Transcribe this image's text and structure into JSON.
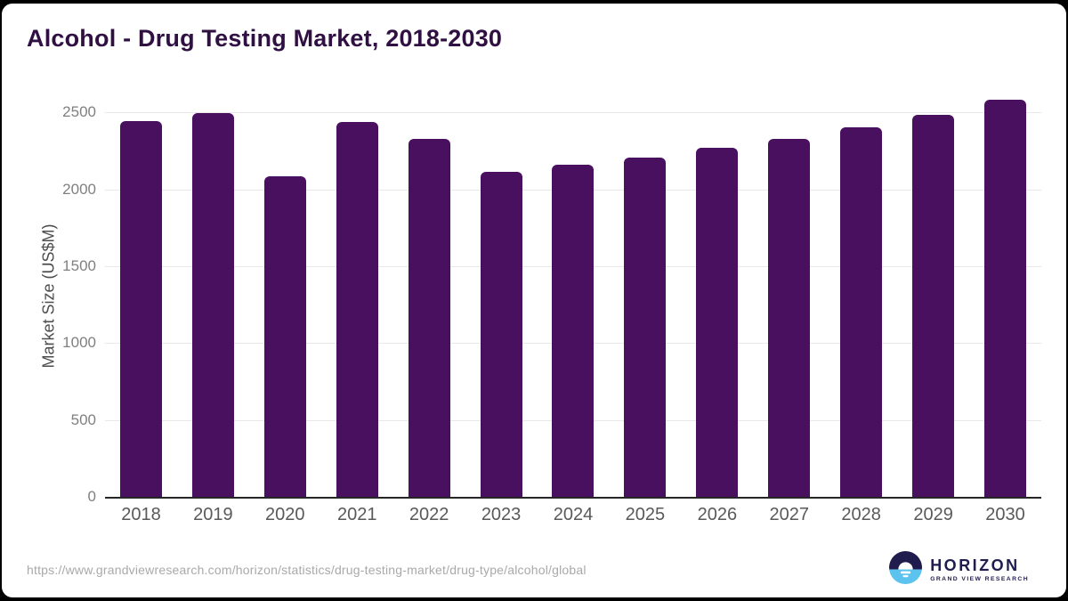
{
  "chart_data": {
    "type": "bar",
    "title": "Alcohol - Drug Testing Market, 2018-2030",
    "categories": [
      "2018",
      "2019",
      "2020",
      "2021",
      "2022",
      "2023",
      "2024",
      "2025",
      "2026",
      "2027",
      "2028",
      "2029",
      "2030"
    ],
    "values": [
      2450,
      2500,
      2090,
      2445,
      2335,
      2120,
      2165,
      2215,
      2275,
      2335,
      2410,
      2490,
      2590
    ],
    "xlabel": "",
    "ylabel": "Market Size (US$M)",
    "yticks": [
      0,
      500,
      1000,
      1500,
      2000,
      2500
    ],
    "ylim": [
      0,
      2635
    ],
    "grid": true,
    "legend": false,
    "bar_color": "#4a1060"
  },
  "footer": {
    "source_url": "https://www.grandviewresearch.com/horizon/statistics/drug-testing-market/drug-type/alcohol/global",
    "logo": {
      "brand": "HORIZON",
      "tagline": "GRAND VIEW RESEARCH",
      "icon": "horizon-sun-over-water-icon",
      "navy": "#211c4e",
      "blue": "#5bc3ee"
    }
  },
  "colors": {
    "title_text": "#301043",
    "bar_fill": "#4a1060",
    "gridline": "#e8e8e8",
    "axis_line": "#262626",
    "y_tick_text": "#808080",
    "x_tick_text": "#595959",
    "url_text": "#a9a9a9",
    "card_background": "#ffffff",
    "outer_background": "#000000"
  }
}
